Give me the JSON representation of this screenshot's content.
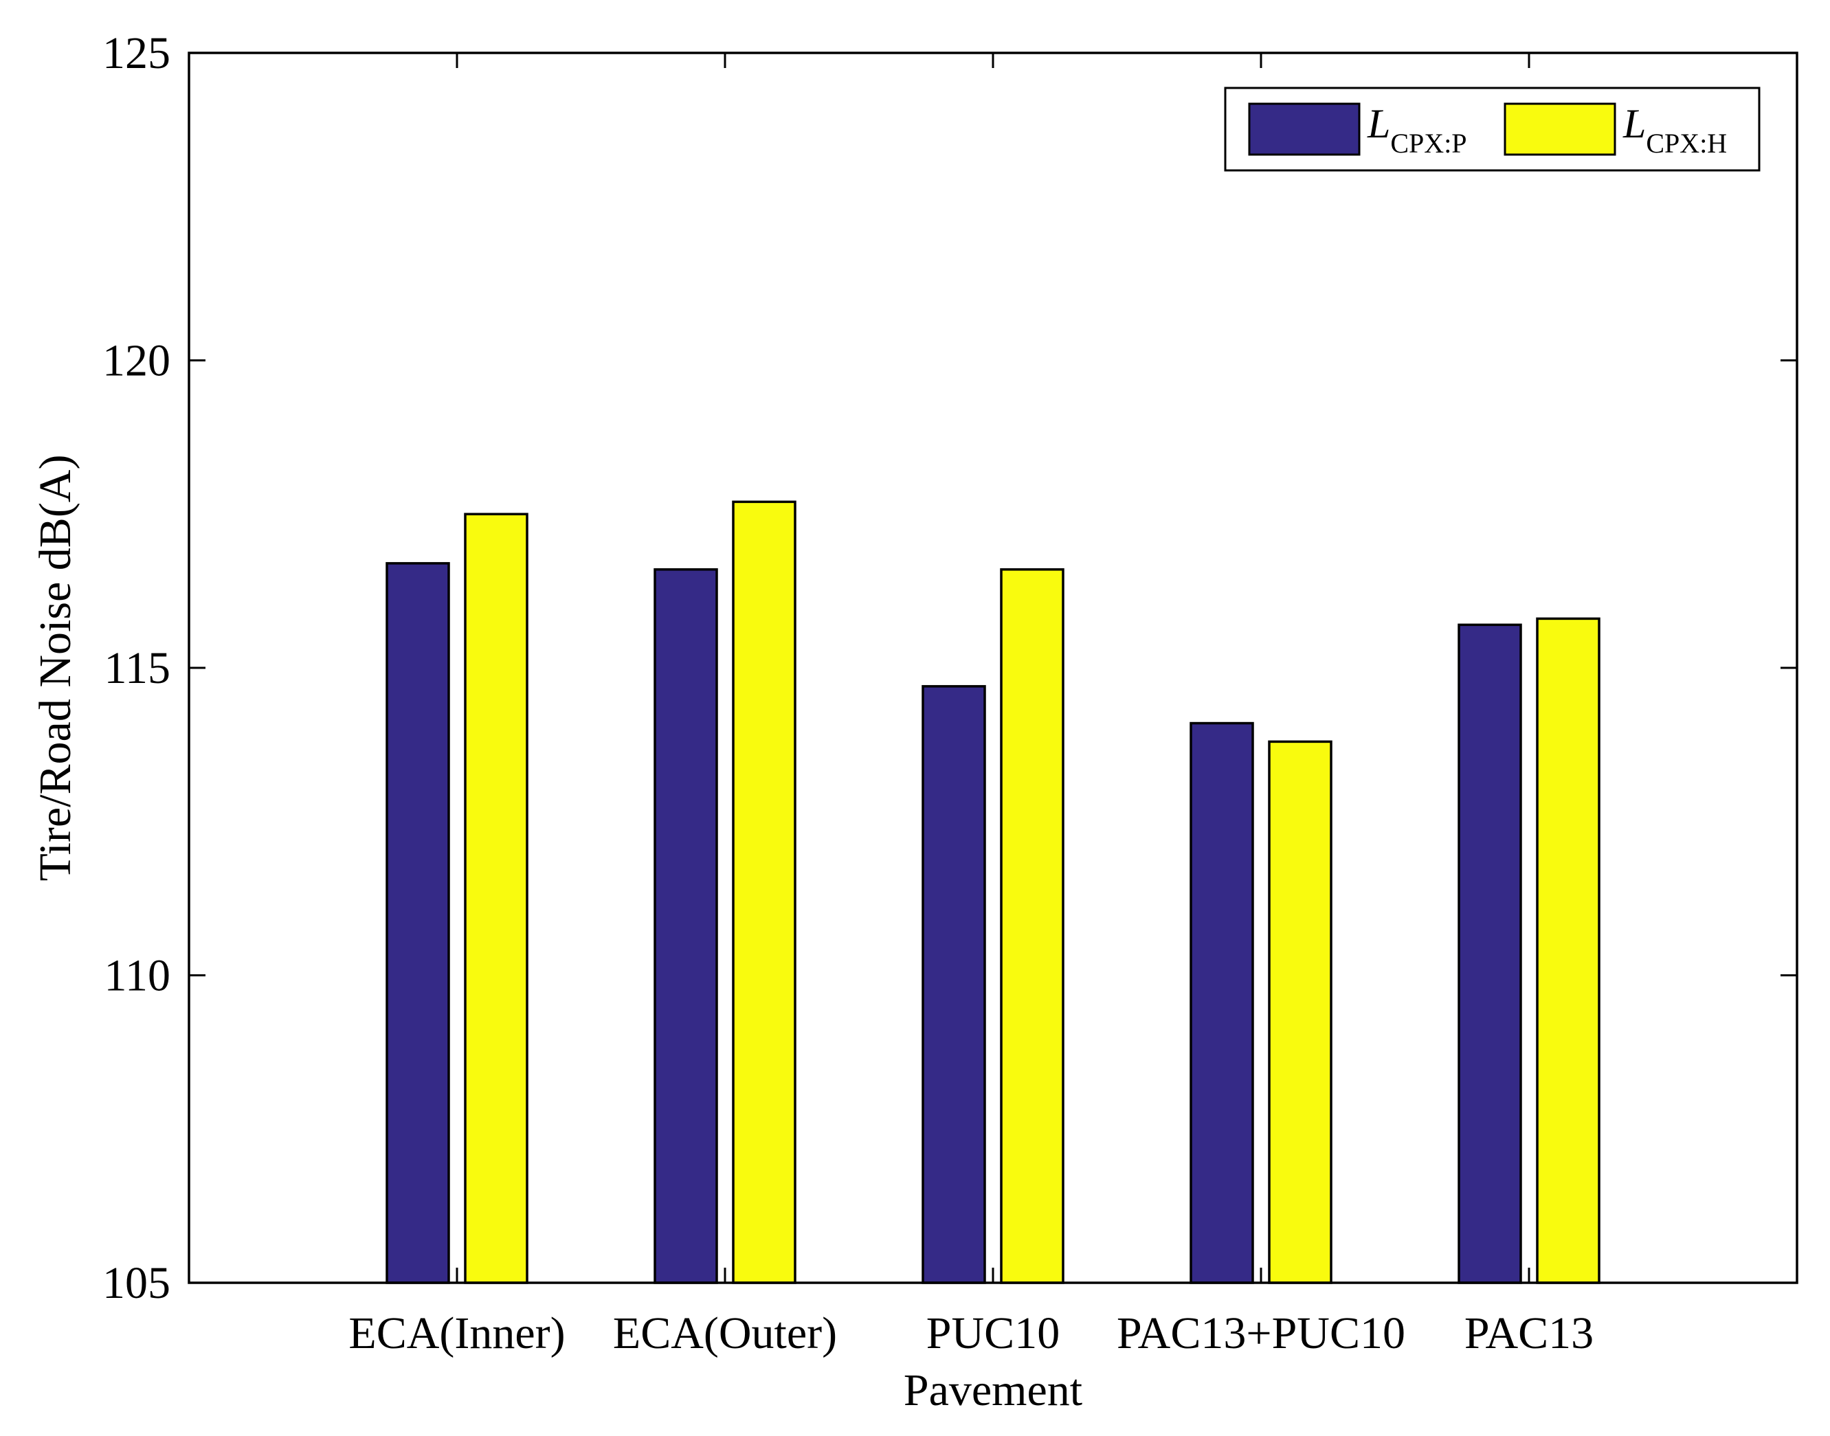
{
  "chart_data": {
    "type": "bar",
    "xlabel": "Pavement",
    "ylabel": "Tire/Road Noise dB(A)",
    "ylim": [
      105,
      125
    ],
    "yticks": [
      "105",
      "110",
      "115",
      "120",
      "125"
    ],
    "categories": [
      "ECA(Inner)",
      "ECA(Outer)",
      "PUC10",
      "PAC13+PUC10",
      "PAC13"
    ],
    "series": [
      {
        "name": "L",
        "subscript": "CPX:P",
        "color": "#352A87",
        "values": [
          116.7,
          116.6,
          114.7,
          114.1,
          115.7
        ]
      },
      {
        "name": "L",
        "subscript": "CPX:H",
        "color": "#F9FB0E",
        "values": [
          117.5,
          117.7,
          116.6,
          113.8,
          115.8
        ]
      }
    ],
    "legend_position": "top-right",
    "grid": false
  }
}
